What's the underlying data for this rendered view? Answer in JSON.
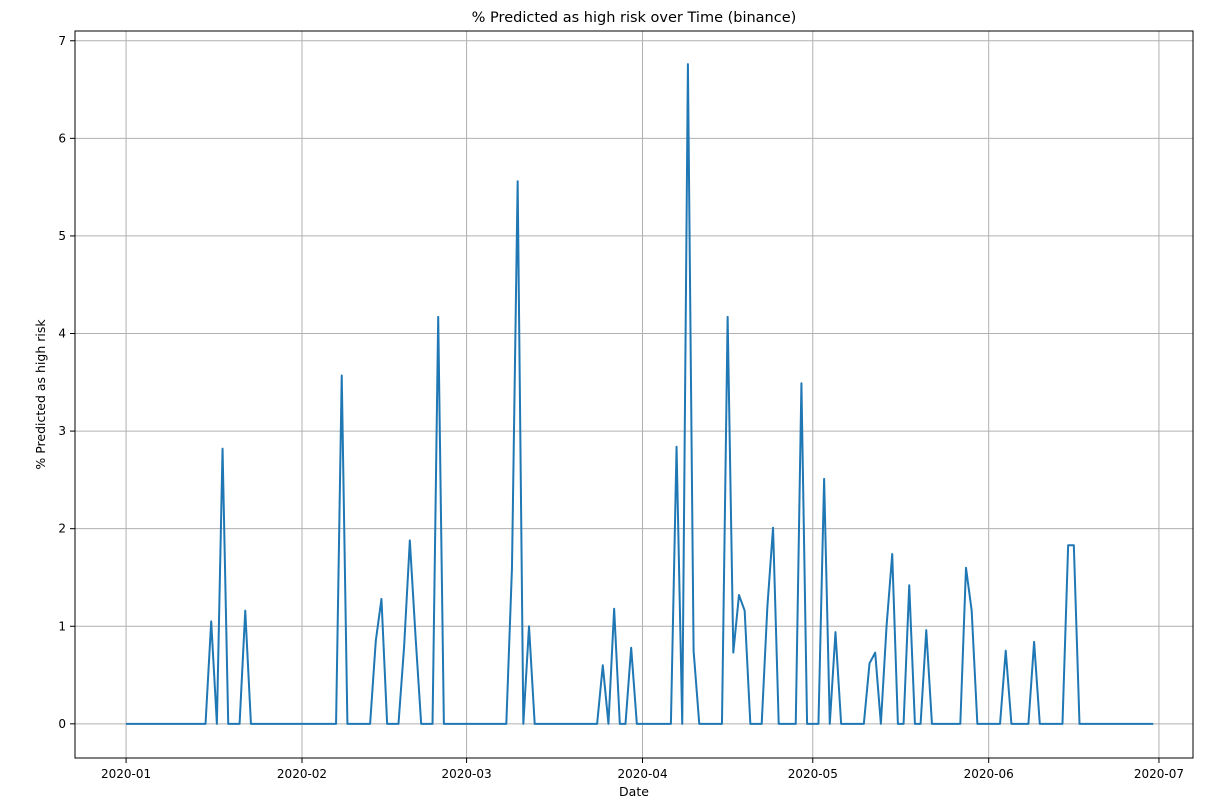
{
  "chart_data": {
    "type": "line",
    "title": "% Predicted as high risk over Time (binance)",
    "xlabel": "Date",
    "ylabel": "% Predicted as high risk",
    "xlim": [
      "2019-12-23",
      "2020-07-07"
    ],
    "ylim": [
      -0.35,
      7.1
    ],
    "x_ticks": [
      "2020-01-01",
      "2020-02-01",
      "2020-03-01",
      "2020-04-01",
      "2020-05-01",
      "2020-06-01",
      "2020-07-01"
    ],
    "x_tick_labels": [
      "2020-01",
      "2020-02",
      "2020-03",
      "2020-04",
      "2020-05",
      "2020-06",
      "2020-07"
    ],
    "y_ticks": [
      0,
      1,
      2,
      3,
      4,
      5,
      6,
      7
    ],
    "grid": true,
    "line_color": "#1f77b4",
    "series": [
      {
        "points": [
          [
            "2020-01-01",
            0
          ],
          [
            "2020-01-02",
            0
          ],
          [
            "2020-01-03",
            0
          ],
          [
            "2020-01-04",
            0
          ],
          [
            "2020-01-05",
            0
          ],
          [
            "2020-01-06",
            0
          ],
          [
            "2020-01-07",
            0
          ],
          [
            "2020-01-08",
            0
          ],
          [
            "2020-01-09",
            0
          ],
          [
            "2020-01-10",
            0
          ],
          [
            "2020-01-11",
            0
          ],
          [
            "2020-01-12",
            0
          ],
          [
            "2020-01-13",
            0
          ],
          [
            "2020-01-14",
            0
          ],
          [
            "2020-01-15",
            0
          ],
          [
            "2020-01-16",
            1.05
          ],
          [
            "2020-01-17",
            0
          ],
          [
            "2020-01-18",
            2.82
          ],
          [
            "2020-01-19",
            0
          ],
          [
            "2020-01-20",
            0
          ],
          [
            "2020-01-21",
            0
          ],
          [
            "2020-01-22",
            1.16
          ],
          [
            "2020-01-23",
            0
          ],
          [
            "2020-01-24",
            0
          ],
          [
            "2020-01-25",
            0
          ],
          [
            "2020-01-26",
            0
          ],
          [
            "2020-01-27",
            0
          ],
          [
            "2020-01-28",
            0
          ],
          [
            "2020-01-29",
            0
          ],
          [
            "2020-01-30",
            0
          ],
          [
            "2020-01-31",
            0
          ],
          [
            "2020-02-01",
            0
          ],
          [
            "2020-02-02",
            0
          ],
          [
            "2020-02-03",
            0
          ],
          [
            "2020-02-04",
            0
          ],
          [
            "2020-02-05",
            0
          ],
          [
            "2020-02-06",
            0
          ],
          [
            "2020-02-07",
            0
          ],
          [
            "2020-02-08",
            3.57
          ],
          [
            "2020-02-09",
            0
          ],
          [
            "2020-02-10",
            0
          ],
          [
            "2020-02-11",
            0
          ],
          [
            "2020-02-12",
            0
          ],
          [
            "2020-02-13",
            0
          ],
          [
            "2020-02-14",
            0.85
          ],
          [
            "2020-02-15",
            1.28
          ],
          [
            "2020-02-16",
            0
          ],
          [
            "2020-02-17",
            0
          ],
          [
            "2020-02-18",
            0
          ],
          [
            "2020-02-19",
            0.8
          ],
          [
            "2020-02-20",
            1.88
          ],
          [
            "2020-02-21",
            0.9
          ],
          [
            "2020-02-22",
            0
          ],
          [
            "2020-02-23",
            0
          ],
          [
            "2020-02-24",
            0
          ],
          [
            "2020-02-25",
            4.17
          ],
          [
            "2020-02-26",
            0
          ],
          [
            "2020-02-27",
            0
          ],
          [
            "2020-02-28",
            0
          ],
          [
            "2020-02-29",
            0
          ],
          [
            "2020-03-01",
            0
          ],
          [
            "2020-03-02",
            0
          ],
          [
            "2020-03-03",
            0
          ],
          [
            "2020-03-04",
            0
          ],
          [
            "2020-03-05",
            0
          ],
          [
            "2020-03-06",
            0
          ],
          [
            "2020-03-07",
            0
          ],
          [
            "2020-03-08",
            0
          ],
          [
            "2020-03-09",
            1.6
          ],
          [
            "2020-03-10",
            5.56
          ],
          [
            "2020-03-11",
            0
          ],
          [
            "2020-03-12",
            1.0
          ],
          [
            "2020-03-13",
            0
          ],
          [
            "2020-03-14",
            0
          ],
          [
            "2020-03-15",
            0
          ],
          [
            "2020-03-16",
            0
          ],
          [
            "2020-03-17",
            0
          ],
          [
            "2020-03-18",
            0
          ],
          [
            "2020-03-19",
            0
          ],
          [
            "2020-03-20",
            0
          ],
          [
            "2020-03-21",
            0
          ],
          [
            "2020-03-22",
            0
          ],
          [
            "2020-03-23",
            0
          ],
          [
            "2020-03-24",
            0
          ],
          [
            "2020-03-25",
            0.6
          ],
          [
            "2020-03-26",
            0
          ],
          [
            "2020-03-27",
            1.18
          ],
          [
            "2020-03-28",
            0
          ],
          [
            "2020-03-29",
            0
          ],
          [
            "2020-03-30",
            0.78
          ],
          [
            "2020-03-31",
            0
          ],
          [
            "2020-04-01",
            0
          ],
          [
            "2020-04-02",
            0
          ],
          [
            "2020-04-03",
            0
          ],
          [
            "2020-04-04",
            0
          ],
          [
            "2020-04-05",
            0
          ],
          [
            "2020-04-06",
            0
          ],
          [
            "2020-04-07",
            2.84
          ],
          [
            "2020-04-08",
            0
          ],
          [
            "2020-04-09",
            6.76
          ],
          [
            "2020-04-10",
            0.75
          ],
          [
            "2020-04-11",
            0
          ],
          [
            "2020-04-12",
            0
          ],
          [
            "2020-04-13",
            0
          ],
          [
            "2020-04-14",
            0
          ],
          [
            "2020-04-15",
            0
          ],
          [
            "2020-04-16",
            4.17
          ],
          [
            "2020-04-17",
            0.73
          ],
          [
            "2020-04-18",
            1.32
          ],
          [
            "2020-04-19",
            1.16
          ],
          [
            "2020-04-20",
            0
          ],
          [
            "2020-04-21",
            0
          ],
          [
            "2020-04-22",
            0
          ],
          [
            "2020-04-23",
            1.2
          ],
          [
            "2020-04-24",
            2.01
          ],
          [
            "2020-04-25",
            0
          ],
          [
            "2020-04-26",
            0
          ],
          [
            "2020-04-27",
            0
          ],
          [
            "2020-04-28",
            0
          ],
          [
            "2020-04-29",
            3.49
          ],
          [
            "2020-04-30",
            0
          ],
          [
            "2020-05-01",
            0
          ],
          [
            "2020-05-02",
            0
          ],
          [
            "2020-05-03",
            2.51
          ],
          [
            "2020-05-04",
            0
          ],
          [
            "2020-05-05",
            0.94
          ],
          [
            "2020-05-06",
            0
          ],
          [
            "2020-05-07",
            0
          ],
          [
            "2020-05-08",
            0
          ],
          [
            "2020-05-09",
            0
          ],
          [
            "2020-05-10",
            0
          ],
          [
            "2020-05-11",
            0.62
          ],
          [
            "2020-05-12",
            0.73
          ],
          [
            "2020-05-13",
            0
          ],
          [
            "2020-05-14",
            1.0
          ],
          [
            "2020-05-15",
            1.74
          ],
          [
            "2020-05-16",
            0
          ],
          [
            "2020-05-17",
            0
          ],
          [
            "2020-05-18",
            1.42
          ],
          [
            "2020-05-19",
            0
          ],
          [
            "2020-05-20",
            0
          ],
          [
            "2020-05-21",
            0.96
          ],
          [
            "2020-05-22",
            0
          ],
          [
            "2020-05-23",
            0
          ],
          [
            "2020-05-24",
            0
          ],
          [
            "2020-05-25",
            0
          ],
          [
            "2020-05-26",
            0
          ],
          [
            "2020-05-27",
            0
          ],
          [
            "2020-05-28",
            1.6
          ],
          [
            "2020-05-29",
            1.16
          ],
          [
            "2020-05-30",
            0
          ],
          [
            "2020-05-31",
            0
          ],
          [
            "2020-06-01",
            0
          ],
          [
            "2020-06-02",
            0
          ],
          [
            "2020-06-03",
            0
          ],
          [
            "2020-06-04",
            0.75
          ],
          [
            "2020-06-05",
            0
          ],
          [
            "2020-06-06",
            0
          ],
          [
            "2020-06-07",
            0
          ],
          [
            "2020-06-08",
            0
          ],
          [
            "2020-06-09",
            0.84
          ],
          [
            "2020-06-10",
            0
          ],
          [
            "2020-06-11",
            0
          ],
          [
            "2020-06-12",
            0
          ],
          [
            "2020-06-13",
            0
          ],
          [
            "2020-06-14",
            0
          ],
          [
            "2020-06-15",
            1.83
          ],
          [
            "2020-06-16",
            1.83
          ],
          [
            "2020-06-17",
            0
          ],
          [
            "2020-06-18",
            0
          ],
          [
            "2020-06-19",
            0
          ],
          [
            "2020-06-20",
            0
          ],
          [
            "2020-06-21",
            0
          ],
          [
            "2020-06-22",
            0
          ],
          [
            "2020-06-23",
            0
          ],
          [
            "2020-06-24",
            0
          ],
          [
            "2020-06-25",
            0
          ],
          [
            "2020-06-26",
            0
          ],
          [
            "2020-06-27",
            0
          ],
          [
            "2020-06-28",
            0
          ],
          [
            "2020-06-29",
            0
          ],
          [
            "2020-06-30",
            0
          ]
        ]
      }
    ]
  }
}
